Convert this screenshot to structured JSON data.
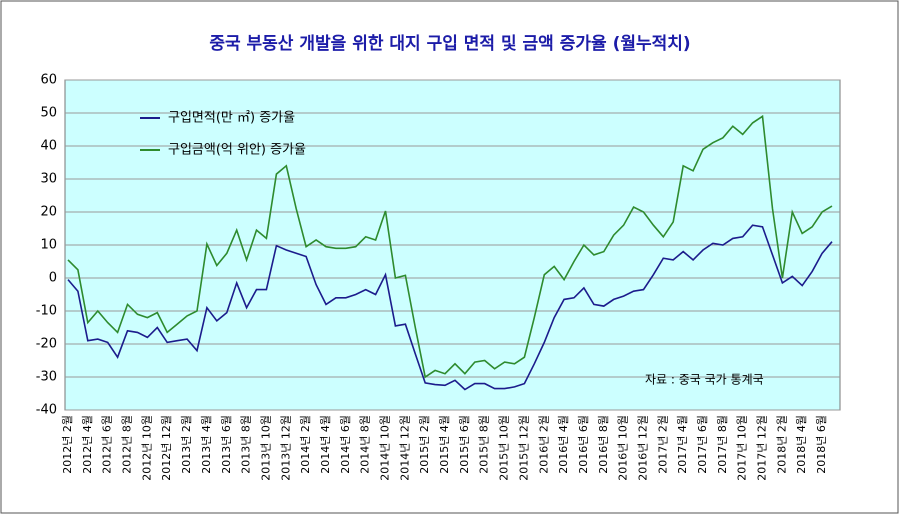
{
  "chart_data": {
    "type": "line",
    "title": "중국 부동산 개발을 위한 대지 구입 면적 및 금액 증가율 (월누적치)",
    "annotation": "자료 : 중국 국가 통계국",
    "categories": [
      "2012년 2월",
      null,
      "2012년 4월",
      null,
      "2012년 6월",
      null,
      "2012년 8월",
      null,
      "2012년 10월",
      null,
      "2012년 12월",
      null,
      "2013년 2월",
      null,
      "2013년 4월",
      null,
      "2013년 6월",
      null,
      "2013년 8월",
      null,
      "2013년 10월",
      null,
      "2013년 12월",
      null,
      "2014년 2월",
      null,
      "2014년 4월",
      null,
      "2014년 6월",
      null,
      "2014년 8월",
      null,
      "2014년 10월",
      null,
      "2014년 12월",
      null,
      "2015년 2월",
      null,
      "2015년 4월",
      null,
      "2015년 6월",
      null,
      "2015년 8월",
      null,
      "2015년 10월",
      null,
      "2015년 12월",
      null,
      "2016년 2월",
      null,
      "2016년 4월",
      null,
      "2016년 6월",
      null,
      "2016년 8월",
      null,
      "2016년 10월",
      null,
      "2016년 12월",
      null,
      "2017년 2월",
      null,
      "2017년 4월",
      null,
      "2017년 6월",
      null,
      "2017년 8월",
      null,
      "2017년 10월",
      null,
      "2017년 12월",
      null,
      "2018년 2월",
      null,
      "2018년 4월",
      null,
      "2018년 6월",
      null
    ],
    "series": [
      {
        "name": "구입면적(만 ㎡) 증가율",
        "color": "#1c1c8c",
        "values": [
          -0.5,
          -4,
          -19,
          -18.5,
          -19.5,
          -24,
          -16,
          -16.5,
          -18,
          -15,
          -19.5,
          -19,
          -18.5,
          -22,
          -9,
          -13,
          -10.5,
          -1.5,
          -9,
          -3.5,
          -3.5,
          9.8,
          8.5,
          7.5,
          6.5,
          -2,
          -8,
          -6,
          -6,
          -5,
          -3.5,
          -5,
          1,
          -14.5,
          -14,
          -23,
          -31.8,
          -32.3,
          -32.5,
          -31,
          -33.8,
          -32,
          -32,
          -33.5,
          -33.5,
          -33,
          -32,
          -26,
          -19.5,
          -12,
          -6.5,
          -6,
          -3,
          -8,
          -8.5,
          -6.5,
          -5.5,
          -4,
          -3.5,
          1,
          6,
          5.5,
          8,
          5.5,
          8.5,
          10.5,
          10,
          12,
          12.5,
          16,
          15.5,
          7,
          -1.5,
          0.5,
          -2.3,
          2,
          7.5,
          11
        ]
      },
      {
        "name": "구입금액(억 위안) 증가율",
        "color": "#2e8b2e",
        "values": [
          5.5,
          2.5,
          -13.5,
          -10,
          -13.5,
          -16.5,
          -8,
          -11,
          -12,
          -10.5,
          -16.5,
          -14,
          -11.5,
          -10,
          10.3,
          3.8,
          7.5,
          14.5,
          5.5,
          14.5,
          12,
          31.5,
          34,
          21,
          9.5,
          11.5,
          9.5,
          9,
          9,
          9.5,
          12.5,
          11.5,
          20.3,
          0,
          0.8,
          -15,
          -30,
          -28,
          -29,
          -26,
          -29,
          -25.5,
          -25,
          -27.5,
          -25.5,
          -26,
          -24,
          -12,
          1,
          3.5,
          -0.5,
          5,
          10,
          7,
          8,
          13,
          16,
          21.5,
          20,
          16,
          12.5,
          17,
          34,
          32.5,
          39,
          41,
          42.5,
          46,
          43.5,
          47,
          49,
          21,
          0,
          20,
          13.5,
          15.5,
          20,
          21.8
        ]
      }
    ],
    "ylim": [
      -40,
      60
    ],
    "yticks": [
      -40,
      -30,
      -20,
      -10,
      0,
      10,
      20,
      30,
      40,
      50,
      60
    ],
    "grid": true
  }
}
